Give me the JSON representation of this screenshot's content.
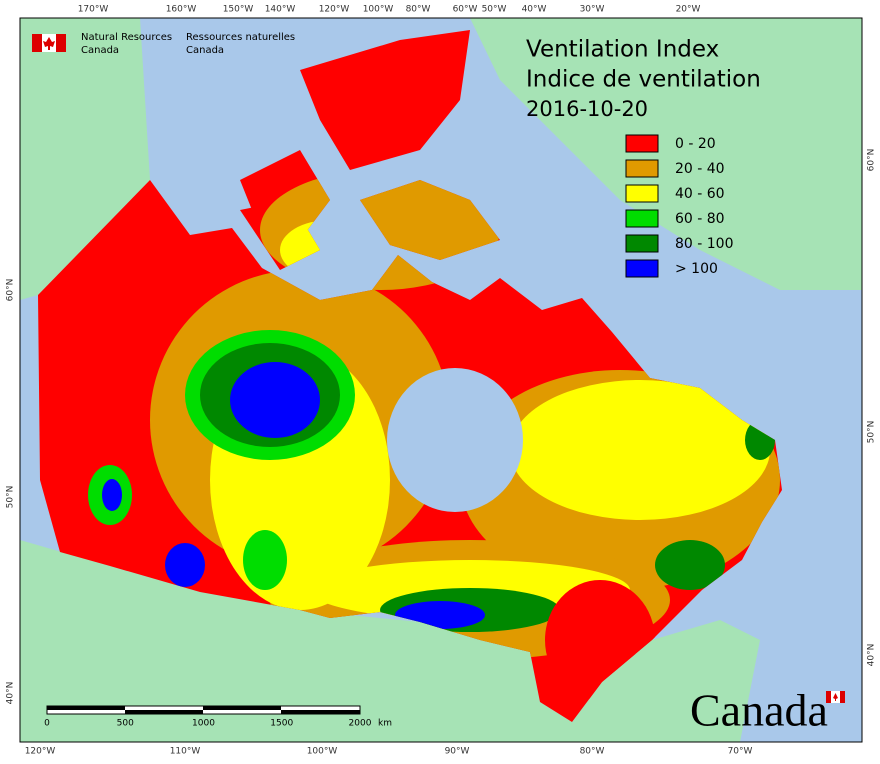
{
  "header": {
    "agency_en": [
      "Natural Resources",
      "Canada"
    ],
    "agency_fr": [
      "Ressources naturelles",
      "Canada"
    ]
  },
  "title": [
    "Ventilation Index",
    "Indice de ventilation",
    "2016-10-20"
  ],
  "legend": [
    {
      "label": "0 - 20",
      "color": "#ff0000"
    },
    {
      "label": "20 - 40",
      "color": "#e09a00"
    },
    {
      "label": "40 - 60",
      "color": "#ffff00"
    },
    {
      "label": "60 - 80",
      "color": "#00dd00"
    },
    {
      "label": "80 - 100",
      "color": "#008800"
    },
    {
      "label": "> 100",
      "color": "#0000ff"
    }
  ],
  "top_labels": [
    "170°W",
    "160°W",
    "150°W",
    "140°W",
    "120°W",
    "100°W",
    "80°W",
    "60°W",
    "50°W",
    "40°W",
    "30°W",
    "20°W"
  ],
  "bottom_labels": [
    "120°W",
    "110°W",
    "100°W",
    "90°W",
    "80°W",
    "70°W"
  ],
  "left_labels": [
    "60°N",
    "50°N",
    "40°N"
  ],
  "right_labels": [
    "60°N",
    "50°N",
    "40°N"
  ],
  "scale": {
    "ticks": [
      "0",
      "500",
      "1000",
      "1500",
      "2000"
    ],
    "unit": "km"
  },
  "wordmark": "Canada"
}
